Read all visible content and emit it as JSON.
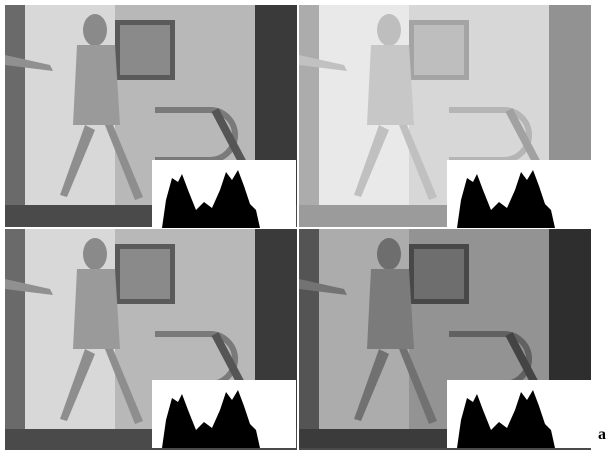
{
  "label": "a"
}
